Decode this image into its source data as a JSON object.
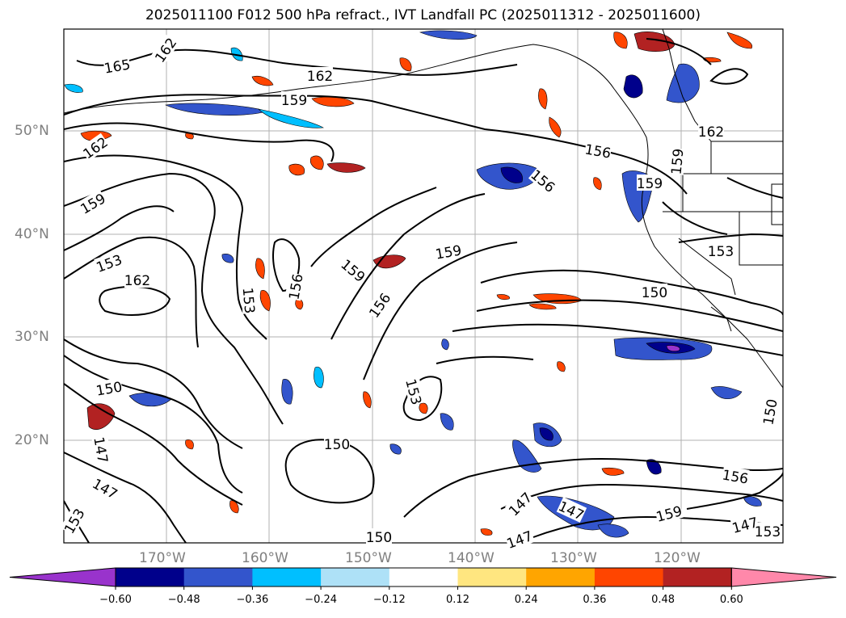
{
  "title": "2025011100 F012 500 hPa refract., IVT Landfall PC (2025011312 - 2025011600)",
  "lat_labels": [
    "50°N",
    "40°N",
    "30°N",
    "20°N"
  ],
  "lon_labels": [
    "170°W",
    "160°W",
    "150°W",
    "140°W",
    "130°W",
    "120°W"
  ],
  "colorbar": {
    "ticks": [
      "−0.60",
      "−0.48",
      "−0.36",
      "−0.24",
      "−0.12",
      "0.12",
      "0.24",
      "0.36",
      "0.48",
      "0.60"
    ],
    "colors": [
      "#9933cc",
      "#00008b",
      "#3355cc",
      "#00bfff",
      "#aee1f7",
      "#ffffff",
      "#ffe680",
      "#ffa500",
      "#ff4500",
      "#b22222",
      "#ff88aa"
    ]
  },
  "contour_labels": [
    "165",
    "162",
    "162",
    "159",
    "162",
    "162",
    "159",
    "156",
    "156",
    "159",
    "159",
    "153",
    "162",
    "156",
    "153",
    "159",
    "159",
    "156",
    "153",
    "153",
    "150",
    "150",
    "150",
    "147",
    "147",
    "147",
    "147",
    "147",
    "150",
    "153",
    "156",
    "159",
    "147",
    "153",
    "150"
  ]
}
